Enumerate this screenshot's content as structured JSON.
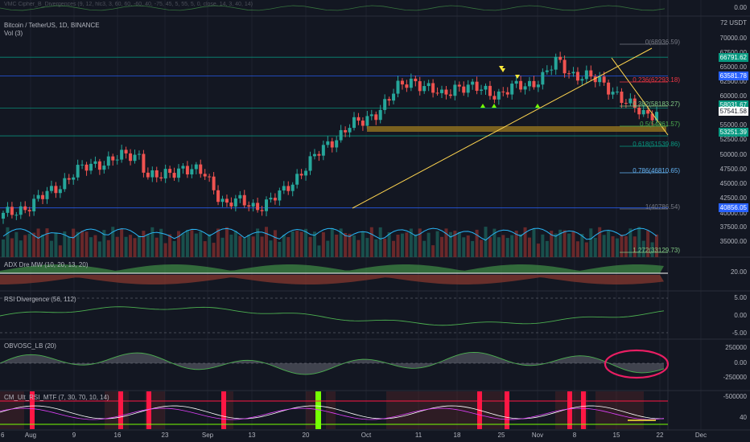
{
  "header": {
    "top_indicator": "VMC Cipher_B_Divergences (9, 12, hlc3, 3, 60, 60, -60, 40, -75, 45, 5, 55, 5, 0, close, 14, 3, 40, 14)",
    "symbol_title": "Bitcoin / TetherUS, 1D, BINANCE",
    "volume_title": "Vol (3)",
    "currency": "USDT"
  },
  "price_axis": [
    "72 USDT",
    "70000.00",
    "67500.00",
    "65000.00",
    "62500.00",
    "60000.00",
    "57500.00",
    "55000.00",
    "52500.00",
    "50000.00",
    "47500.00",
    "45000.00",
    "42500.00",
    "40000.00",
    "37500.00",
    "35000.00"
  ],
  "price_tags": [
    {
      "value": "66791.62",
      "color": "#089981"
    },
    {
      "value": "63581.78",
      "color": "#2962ff"
    },
    {
      "value": "58031.67",
      "color": "#089981"
    },
    {
      "value": "57541.58",
      "color": "#ffffff"
    },
    {
      "value": "53251.39",
      "color": "#089981"
    },
    {
      "value": "40856.05",
      "color": "#2962ff"
    }
  ],
  "fib_levels": [
    {
      "label": "0(68936.59)",
      "color": "#787b86"
    },
    {
      "label": "0.236(62293.18)",
      "color": "#f23645"
    },
    {
      "label": "0.382(58183.27)",
      "color": "#81c784"
    },
    {
      "label": "0.5(54861.57)",
      "color": "#4caf50"
    },
    {
      "label": "0.618(51539.86)",
      "color": "#089981"
    },
    {
      "label": "0.786(46810.65)",
      "color": "#64b5f6"
    },
    {
      "label": "1(40786.54)",
      "color": "#787b86"
    },
    {
      "label": "1.272(33129.73)",
      "color": "#81c784"
    }
  ],
  "panes": {
    "adx": {
      "title": "ADX Dre MW (10, 20, 13, 20)",
      "axis": [
        "20.00"
      ]
    },
    "rsi": {
      "title": "RSI Divergence (56, 112)",
      "axis": [
        "5.00",
        "0.00",
        "-5.00"
      ]
    },
    "obv": {
      "title": "OBVOSC_LB (20)",
      "axis": [
        "250000",
        "0.00",
        "-250000",
        "-500000"
      ]
    },
    "cm": {
      "title": "CM_Ult_RSI_MTF (7, 30, 70, 10, 14)",
      "axis": [
        "40"
      ]
    },
    "top": {
      "axis": [
        "0.00"
      ]
    }
  },
  "time_axis": [
    "Aug",
    "9",
    "16",
    "23",
    "Sep",
    "13",
    "20",
    "Oct",
    "11",
    "18",
    "25",
    "Nov",
    "8",
    "15",
    "22",
    "Dec"
  ],
  "partial_left_label": "6",
  "colors": {
    "up": "#26a69a",
    "down": "#ef5350",
    "bg": "#131722",
    "fib_line": "#ffd54f",
    "zone": "#8d6e1f",
    "circle": "#e91e63"
  }
}
